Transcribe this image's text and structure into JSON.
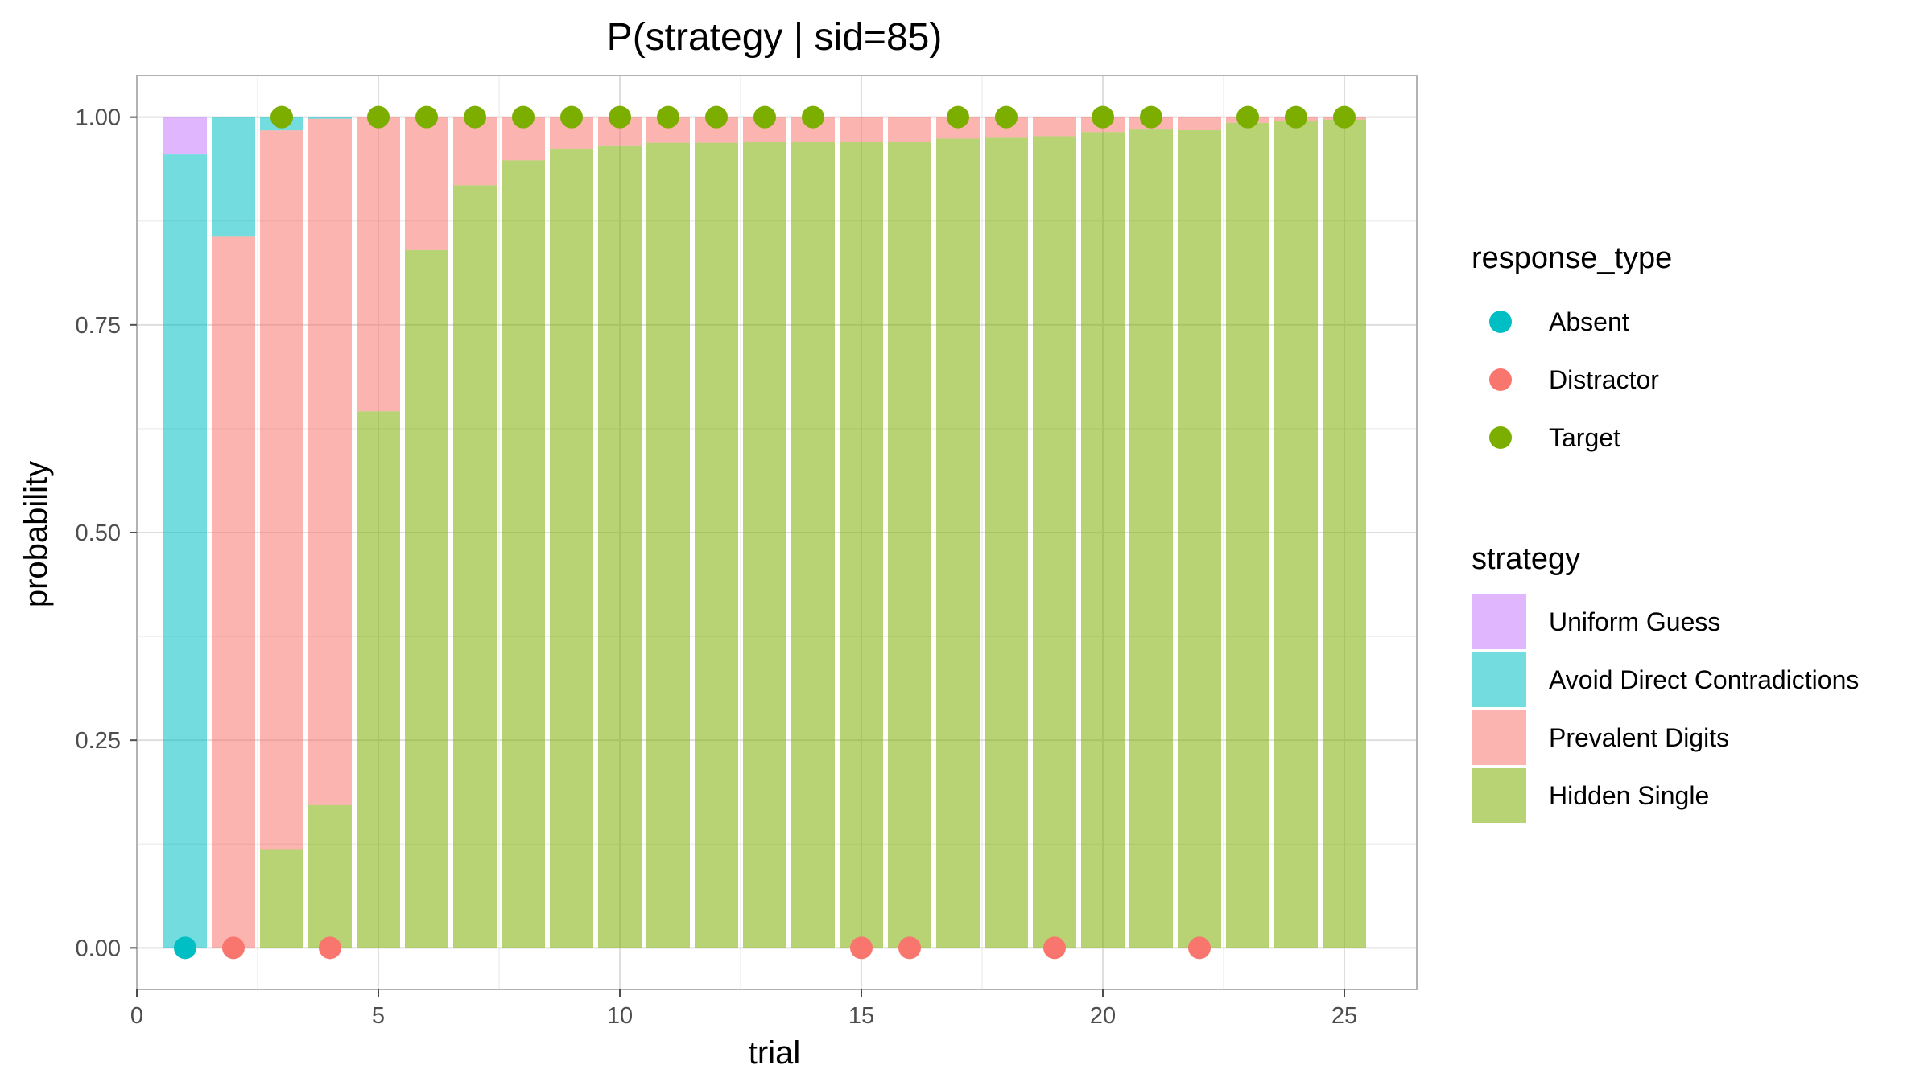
{
  "chart_data": {
    "type": "bar",
    "stacked": true,
    "title": "P(strategy | sid=85)",
    "xlabel": "trial",
    "ylabel": "probability",
    "xlim": [
      0,
      26.5
    ],
    "ylim": [
      -0.05,
      1.05
    ],
    "xticks": [
      0,
      5,
      10,
      15,
      20,
      25
    ],
    "xtick_labels": [
      "0",
      "5",
      "10",
      "15",
      "20",
      "25"
    ],
    "yticks": [
      0,
      0.25,
      0.5,
      0.75,
      1.0
    ],
    "ytick_labels": [
      "0.00",
      "0.25",
      "0.50",
      "0.75",
      "1.00"
    ],
    "grid": true,
    "categories": [
      1,
      2,
      3,
      4,
      5,
      6,
      7,
      8,
      9,
      10,
      11,
      12,
      13,
      14,
      15,
      16,
      17,
      18,
      19,
      20,
      21,
      22,
      23,
      24,
      25
    ],
    "series": [
      {
        "name": "Hidden Single",
        "color": "#7CAE00",
        "values": [
          0,
          0,
          0.118,
          0.172,
          0.646,
          0.84,
          0.918,
          0.948,
          0.962,
          0.966,
          0.969,
          0.969,
          0.97,
          0.97,
          0.97,
          0.97,
          0.974,
          0.976,
          0.977,
          0.982,
          0.986,
          0.985,
          0.993,
          0.995,
          0.997
        ]
      },
      {
        "name": "Prevalent Digits",
        "color": "#F8766D",
        "values": [
          0,
          0.857,
          0.866,
          0.826,
          0.354,
          0.16,
          0.082,
          0.052,
          0.038,
          0.034,
          0.031,
          0.031,
          0.03,
          0.03,
          0.03,
          0.03,
          0.026,
          0.024,
          0.023,
          0.018,
          0.014,
          0.015,
          0.007,
          0.005,
          0.003
        ]
      },
      {
        "name": "Avoid Direct Contradictions",
        "color": "#00BFC4",
        "values": [
          0.955,
          0.143,
          0.016,
          0.002,
          0,
          0,
          0,
          0,
          0,
          0,
          0,
          0,
          0,
          0,
          0,
          0,
          0,
          0,
          0,
          0,
          0,
          0,
          0,
          0,
          0
        ]
      },
      {
        "name": "Uniform Guess",
        "color": "#C77CFF",
        "values": [
          0.045,
          0,
          0,
          0,
          0,
          0,
          0,
          0,
          0,
          0,
          0,
          0,
          0,
          0,
          0,
          0,
          0,
          0,
          0,
          0,
          0,
          0,
          0,
          0,
          0
        ]
      }
    ],
    "points": {
      "name": "response_type",
      "x": [
        1,
        2,
        3,
        4,
        5,
        6,
        7,
        8,
        9,
        10,
        11,
        12,
        13,
        14,
        15,
        16,
        17,
        18,
        19,
        20,
        21,
        22,
        23,
        24,
        25
      ],
      "y": [
        0,
        0,
        1,
        0,
        1,
        1,
        1,
        1,
        1,
        1,
        1,
        1,
        1,
        1,
        0,
        0,
        1,
        1,
        0,
        1,
        1,
        0,
        1,
        1,
        1
      ],
      "type": [
        "Absent",
        "Distractor",
        "Target",
        "Distractor",
        "Target",
        "Target",
        "Target",
        "Target",
        "Target",
        "Target",
        "Target",
        "Target",
        "Target",
        "Target",
        "Distractor",
        "Distractor",
        "Target",
        "Target",
        "Distractor",
        "Target",
        "Target",
        "Distractor",
        "Target",
        "Target",
        "Target"
      ]
    },
    "point_colors": {
      "Absent": "#00BFC4",
      "Distractor": "#F8766D",
      "Target": "#7CAE00"
    },
    "legend": {
      "placement": "right",
      "response_type": {
        "title": "response_type",
        "items": [
          "Absent",
          "Distractor",
          "Target"
        ]
      },
      "strategy": {
        "title": "strategy",
        "items": [
          "Uniform Guess",
          "Avoid Direct Contradictions",
          "Prevalent Digits",
          "Hidden Single"
        ]
      }
    }
  }
}
